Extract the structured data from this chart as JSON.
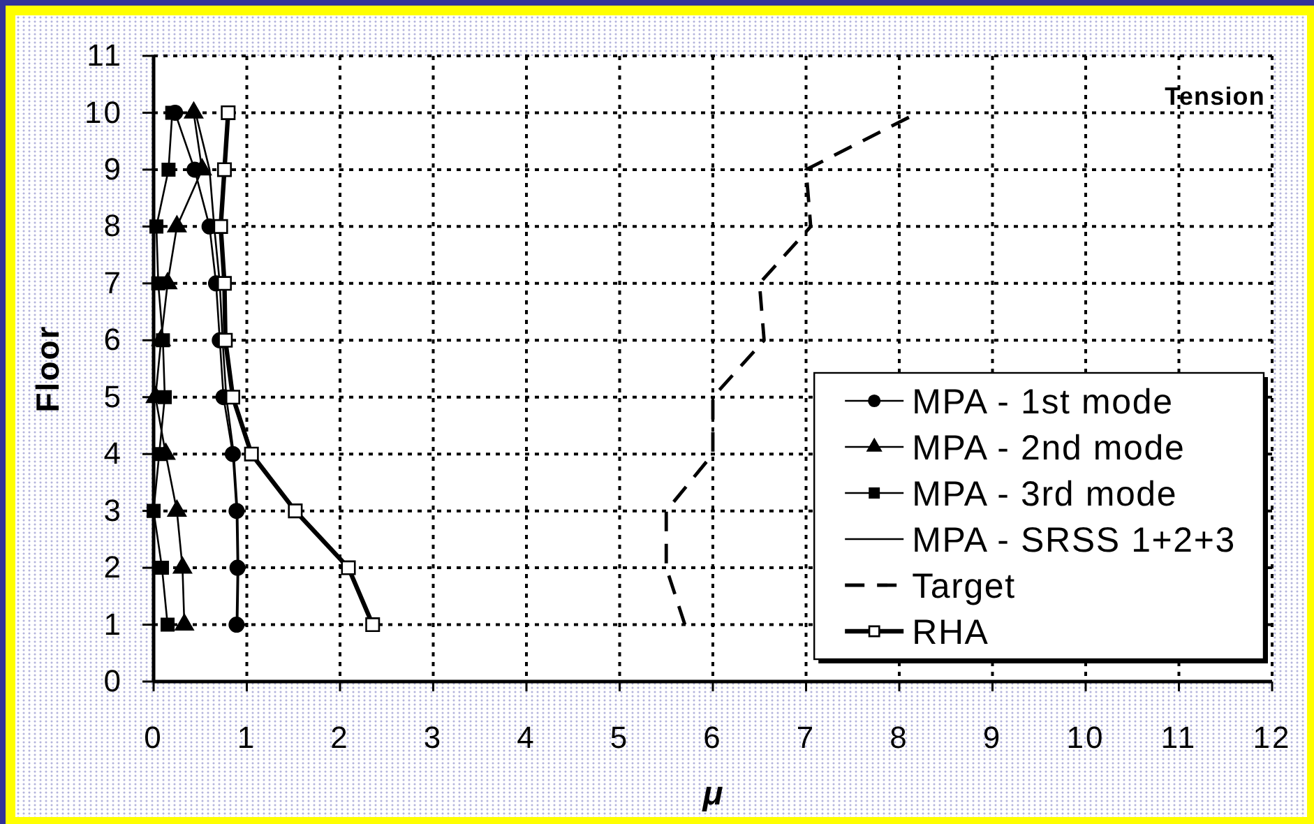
{
  "chart_data": {
    "type": "line",
    "xlabel": "μ",
    "ylabel": "Floor",
    "annotations": [
      "Tension"
    ],
    "xlim": [
      0,
      12
    ],
    "xticks": [
      0,
      1,
      2,
      3,
      4,
      5,
      6,
      7,
      8,
      9,
      10,
      11,
      12
    ],
    "ylim": [
      0,
      11
    ],
    "yticks": [
      0,
      1,
      2,
      3,
      4,
      5,
      6,
      7,
      8,
      9,
      10,
      11
    ],
    "grid": true,
    "legend": "bottom right",
    "series": [
      {
        "name": "MPA - 1st mode",
        "color": "#000000",
        "marker": "circle",
        "line_style": "solid",
        "x": [
          0.89,
          0.9,
          0.89,
          0.85,
          0.75,
          0.71,
          0.67,
          0.6,
          0.44,
          0.23
        ],
        "values": [
          1,
          2,
          3,
          4,
          5,
          6,
          7,
          8,
          9,
          10
        ]
      },
      {
        "name": "MPA - 2nd mode",
        "color": "#000000",
        "marker": "triangle",
        "line_style": "solid",
        "x": [
          0.33,
          0.31,
          0.25,
          0.13,
          0.02,
          0.08,
          0.15,
          0.25,
          0.52,
          0.43
        ],
        "values": [
          1,
          2,
          3,
          4,
          5,
          6,
          7,
          8,
          9,
          10
        ]
      },
      {
        "name": "MPA - 3rd mode",
        "color": "#000000",
        "marker": "square",
        "line_style": "solid",
        "x": [
          0.15,
          0.09,
          0.0,
          0.06,
          0.12,
          0.1,
          0.05,
          0.03,
          0.16,
          0.2
        ],
        "values": [
          1,
          2,
          3,
          4,
          5,
          6,
          7,
          8,
          9,
          10
        ]
      },
      {
        "name": "MPA - SRSS 1+2+3",
        "color": "#000000",
        "marker": "none",
        "line_style": "solid",
        "x": [
          0.9,
          0.91,
          0.9,
          0.86,
          0.78,
          0.74,
          0.71,
          0.65,
          0.6,
          0.45
        ],
        "values": [
          1,
          2,
          3,
          4,
          5,
          6,
          7,
          8,
          9,
          10
        ]
      },
      {
        "name": "Target",
        "color": "#000000",
        "marker": "none",
        "line_style": "dashed",
        "x": [
          5.7,
          5.5,
          5.5,
          6.0,
          6.0,
          6.55,
          6.5,
          7.05,
          7.0,
          8.2
        ],
        "values": [
          1,
          2,
          3,
          4,
          5,
          6,
          7,
          8,
          9,
          10
        ]
      },
      {
        "name": "RHA",
        "color": "#000000",
        "marker": "square",
        "line_style": "solid",
        "x": [
          2.35,
          2.09,
          1.52,
          1.05,
          0.85,
          0.77,
          0.76,
          0.72,
          0.76,
          0.8
        ],
        "values": [
          1,
          2,
          3,
          4,
          5,
          6,
          7,
          8,
          9,
          10
        ]
      }
    ]
  }
}
